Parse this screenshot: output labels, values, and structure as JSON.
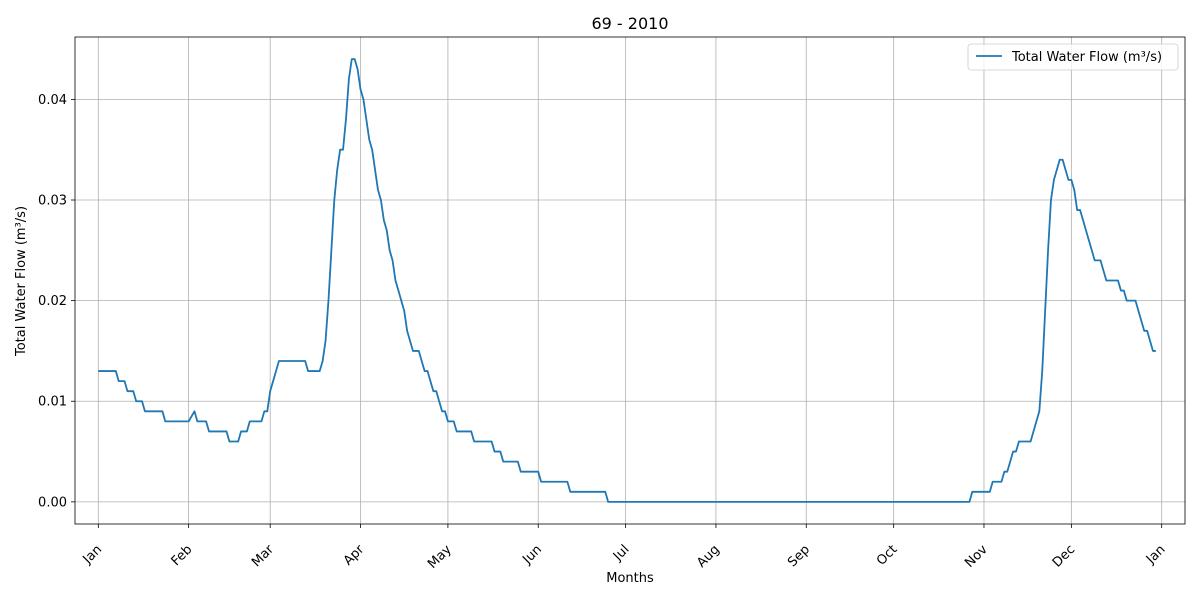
{
  "chart_data": {
    "type": "line",
    "title": "69 - 2010",
    "xlabel": "Months",
    "ylabel": "Total Water Flow (m³/s)",
    "xlim": [
      "2009-12-24",
      "2011-01-09"
    ],
    "ylim": [
      -0.0022,
      0.0462
    ],
    "grid": true,
    "legend_position": "top-right",
    "x_ticks": [
      {
        "date": "2010-01-01",
        "label": "Jan"
      },
      {
        "date": "2010-02-01",
        "label": "Feb"
      },
      {
        "date": "2010-03-01",
        "label": "Mar"
      },
      {
        "date": "2010-04-01",
        "label": "Apr"
      },
      {
        "date": "2010-05-01",
        "label": "May"
      },
      {
        "date": "2010-06-01",
        "label": "Jun"
      },
      {
        "date": "2010-07-01",
        "label": "Jul"
      },
      {
        "date": "2010-08-01",
        "label": "Aug"
      },
      {
        "date": "2010-09-01",
        "label": "Sep"
      },
      {
        "date": "2010-10-01",
        "label": "Oct"
      },
      {
        "date": "2010-11-01",
        "label": "Nov"
      },
      {
        "date": "2010-12-01",
        "label": "Dec"
      },
      {
        "date": "2011-01-01",
        "label": "Jan"
      }
    ],
    "y_ticks": [
      {
        "value": 0.0,
        "label": "0.00"
      },
      {
        "value": 0.01,
        "label": "0.01"
      },
      {
        "value": 0.02,
        "label": "0.02"
      },
      {
        "value": 0.03,
        "label": "0.03"
      },
      {
        "value": 0.04,
        "label": "0.04"
      }
    ],
    "series": [
      {
        "name": "Total Water Flow (m³/s)",
        "color": "#1f77b4",
        "points": [
          [
            "2010-01-01",
            0.013
          ],
          [
            "2010-01-07",
            0.013
          ],
          [
            "2010-01-08",
            0.012
          ],
          [
            "2010-01-10",
            0.012
          ],
          [
            "2010-01-11",
            0.011
          ],
          [
            "2010-01-13",
            0.011
          ],
          [
            "2010-01-14",
            0.01
          ],
          [
            "2010-01-16",
            0.01
          ],
          [
            "2010-01-17",
            0.009
          ],
          [
            "2010-01-23",
            0.009
          ],
          [
            "2010-01-24",
            0.008
          ],
          [
            "2010-02-01",
            0.008
          ],
          [
            "2010-02-03",
            0.009
          ],
          [
            "2010-02-04",
            0.008
          ],
          [
            "2010-02-07",
            0.008
          ],
          [
            "2010-02-08",
            0.007
          ],
          [
            "2010-02-14",
            0.007
          ],
          [
            "2010-02-15",
            0.006
          ],
          [
            "2010-02-18",
            0.006
          ],
          [
            "2010-02-19",
            0.007
          ],
          [
            "2010-02-21",
            0.007
          ],
          [
            "2010-02-22",
            0.008
          ],
          [
            "2010-02-26",
            0.008
          ],
          [
            "2010-02-27",
            0.009
          ],
          [
            "2010-02-28",
            0.009
          ],
          [
            "2010-03-01",
            0.011
          ],
          [
            "2010-03-04",
            0.014
          ],
          [
            "2010-03-13",
            0.014
          ],
          [
            "2010-03-14",
            0.013
          ],
          [
            "2010-03-18",
            0.013
          ],
          [
            "2010-03-19",
            0.014
          ],
          [
            "2010-03-20",
            0.016
          ],
          [
            "2010-03-21",
            0.02
          ],
          [
            "2010-03-22",
            0.025
          ],
          [
            "2010-03-23",
            0.03
          ],
          [
            "2010-03-24",
            0.033
          ],
          [
            "2010-03-25",
            0.035
          ],
          [
            "2010-03-26",
            0.035
          ],
          [
            "2010-03-27",
            0.038
          ],
          [
            "2010-03-28",
            0.042
          ],
          [
            "2010-03-29",
            0.044
          ],
          [
            "2010-03-30",
            0.044
          ],
          [
            "2010-03-31",
            0.043
          ],
          [
            "2010-04-01",
            0.041
          ],
          [
            "2010-04-02",
            0.04
          ],
          [
            "2010-04-03",
            0.038
          ],
          [
            "2010-04-04",
            0.036
          ],
          [
            "2010-04-05",
            0.035
          ],
          [
            "2010-04-06",
            0.033
          ],
          [
            "2010-04-07",
            0.031
          ],
          [
            "2010-04-08",
            0.03
          ],
          [
            "2010-04-09",
            0.028
          ],
          [
            "2010-04-10",
            0.027
          ],
          [
            "2010-04-11",
            0.025
          ],
          [
            "2010-04-12",
            0.024
          ],
          [
            "2010-04-13",
            0.022
          ],
          [
            "2010-04-14",
            0.021
          ],
          [
            "2010-04-15",
            0.02
          ],
          [
            "2010-04-16",
            0.019
          ],
          [
            "2010-04-17",
            0.017
          ],
          [
            "2010-04-18",
            0.016
          ],
          [
            "2010-04-19",
            0.015
          ],
          [
            "2010-04-21",
            0.015
          ],
          [
            "2010-04-22",
            0.014
          ],
          [
            "2010-04-23",
            0.013
          ],
          [
            "2010-04-24",
            0.013
          ],
          [
            "2010-04-25",
            0.012
          ],
          [
            "2010-04-26",
            0.011
          ],
          [
            "2010-04-27",
            0.011
          ],
          [
            "2010-04-28",
            0.01
          ],
          [
            "2010-04-29",
            0.009
          ],
          [
            "2010-04-30",
            0.009
          ],
          [
            "2010-05-01",
            0.008
          ],
          [
            "2010-05-03",
            0.008
          ],
          [
            "2010-05-04",
            0.007
          ],
          [
            "2010-05-09",
            0.007
          ],
          [
            "2010-05-10",
            0.006
          ],
          [
            "2010-05-16",
            0.006
          ],
          [
            "2010-05-17",
            0.005
          ],
          [
            "2010-05-19",
            0.005
          ],
          [
            "2010-05-20",
            0.004
          ],
          [
            "2010-05-25",
            0.004
          ],
          [
            "2010-05-26",
            0.003
          ],
          [
            "2010-06-01",
            0.003
          ],
          [
            "2010-06-02",
            0.002
          ],
          [
            "2010-06-11",
            0.002
          ],
          [
            "2010-06-12",
            0.001
          ],
          [
            "2010-06-24",
            0.001
          ],
          [
            "2010-06-25",
            0.0
          ],
          [
            "2010-10-27",
            0.0
          ],
          [
            "2010-10-28",
            0.001
          ],
          [
            "2010-11-03",
            0.001
          ],
          [
            "2010-11-04",
            0.002
          ],
          [
            "2010-11-07",
            0.002
          ],
          [
            "2010-11-08",
            0.003
          ],
          [
            "2010-11-09",
            0.003
          ],
          [
            "2010-11-10",
            0.004
          ],
          [
            "2010-11-11",
            0.005
          ],
          [
            "2010-11-12",
            0.005
          ],
          [
            "2010-11-13",
            0.006
          ],
          [
            "2010-11-17",
            0.006
          ],
          [
            "2010-11-18",
            0.007
          ],
          [
            "2010-11-20",
            0.009
          ],
          [
            "2010-11-21",
            0.013
          ],
          [
            "2010-11-22",
            0.019
          ],
          [
            "2010-11-23",
            0.025
          ],
          [
            "2010-11-24",
            0.03
          ],
          [
            "2010-11-25",
            0.032
          ],
          [
            "2010-11-26",
            0.033
          ],
          [
            "2010-11-27",
            0.034
          ],
          [
            "2010-11-28",
            0.034
          ],
          [
            "2010-11-29",
            0.033
          ],
          [
            "2010-11-30",
            0.032
          ],
          [
            "2010-12-01",
            0.032
          ],
          [
            "2010-12-02",
            0.031
          ],
          [
            "2010-12-03",
            0.029
          ],
          [
            "2010-12-04",
            0.029
          ],
          [
            "2010-12-05",
            0.028
          ],
          [
            "2010-12-06",
            0.027
          ],
          [
            "2010-12-07",
            0.026
          ],
          [
            "2010-12-08",
            0.025
          ],
          [
            "2010-12-09",
            0.024
          ],
          [
            "2010-12-11",
            0.024
          ],
          [
            "2010-12-12",
            0.023
          ],
          [
            "2010-12-13",
            0.022
          ],
          [
            "2010-12-17",
            0.022
          ],
          [
            "2010-12-18",
            0.021
          ],
          [
            "2010-12-19",
            0.021
          ],
          [
            "2010-12-20",
            0.02
          ],
          [
            "2010-12-23",
            0.02
          ],
          [
            "2010-12-24",
            0.019
          ],
          [
            "2010-12-25",
            0.018
          ],
          [
            "2010-12-26",
            0.017
          ],
          [
            "2010-12-27",
            0.017
          ],
          [
            "2010-12-28",
            0.016
          ],
          [
            "2010-12-29",
            0.015
          ],
          [
            "2010-12-30",
            0.015
          ]
        ]
      }
    ]
  }
}
